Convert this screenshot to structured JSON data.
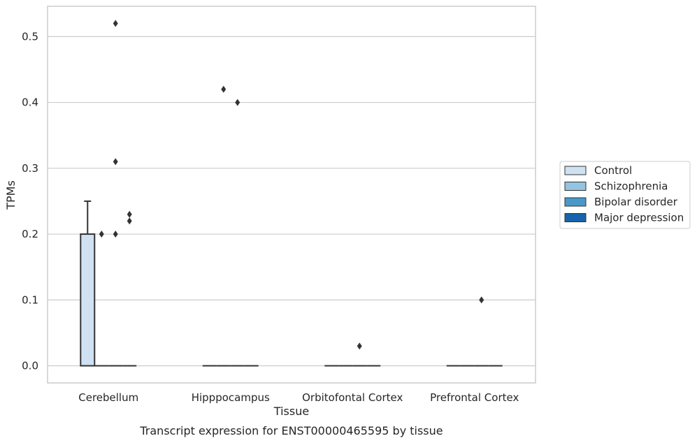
{
  "chart_data": {
    "type": "box",
    "xlabel": "Tissue",
    "ylabel": "TPMs",
    "caption": "Transcript expression for ENST00000465595 by tissue",
    "categories": [
      "Cerebellum",
      "Hipppocampus",
      "Orbitofontal Cortex",
      "Prefrontal Cortex"
    ],
    "ylim": [
      -0.026,
      0.546
    ],
    "yticks": [
      "0.0",
      "0.1",
      "0.2",
      "0.3",
      "0.4",
      "0.5"
    ],
    "grid": "horizontal",
    "legend_position": "right",
    "series": [
      {
        "name": "Control",
        "color": "#d0e1f2"
      },
      {
        "name": "Schizophrenia",
        "color": "#94c4df"
      },
      {
        "name": "Bipolar disorder",
        "color": "#4a98c9"
      },
      {
        "name": "Major depression",
        "color": "#1764ab"
      }
    ],
    "boxes": [
      {
        "category": 0,
        "series": 0,
        "q1": 0.0,
        "median": 0.0,
        "q3": 0.2,
        "whisker_low": 0.0,
        "whisker_high": 0.25,
        "outliers": []
      },
      {
        "category": 0,
        "series": 1,
        "q1": 0.0,
        "median": 0.0,
        "q3": 0.0,
        "whisker_low": 0.0,
        "whisker_high": 0.0,
        "outliers": [
          0.2
        ]
      },
      {
        "category": 0,
        "series": 2,
        "q1": 0.0,
        "median": 0.0,
        "q3": 0.0,
        "whisker_low": 0.0,
        "whisker_high": 0.0,
        "outliers": [
          0.52,
          0.31,
          0.2
        ]
      },
      {
        "category": 0,
        "series": 3,
        "q1": 0.0,
        "median": 0.0,
        "q3": 0.0,
        "whisker_low": 0.0,
        "whisker_high": 0.0,
        "outliers": [
          0.23,
          0.22
        ]
      },
      {
        "category": 1,
        "series": 0,
        "q1": 0.0,
        "median": 0.0,
        "q3": 0.0,
        "whisker_low": 0.0,
        "whisker_high": 0.0,
        "outliers": []
      },
      {
        "category": 1,
        "series": 1,
        "q1": 0.0,
        "median": 0.0,
        "q3": 0.0,
        "whisker_low": 0.0,
        "whisker_high": 0.0,
        "outliers": [
          0.42
        ]
      },
      {
        "category": 1,
        "series": 2,
        "q1": 0.0,
        "median": 0.0,
        "q3": 0.0,
        "whisker_low": 0.0,
        "whisker_high": 0.0,
        "outliers": [
          0.4
        ]
      },
      {
        "category": 1,
        "series": 3,
        "q1": 0.0,
        "median": 0.0,
        "q3": 0.0,
        "whisker_low": 0.0,
        "whisker_high": 0.0,
        "outliers": []
      },
      {
        "category": 2,
        "series": 0,
        "q1": 0.0,
        "median": 0.0,
        "q3": 0.0,
        "whisker_low": 0.0,
        "whisker_high": 0.0,
        "outliers": []
      },
      {
        "category": 2,
        "series": 1,
        "q1": 0.0,
        "median": 0.0,
        "q3": 0.0,
        "whisker_low": 0.0,
        "whisker_high": 0.0,
        "outliers": []
      },
      {
        "category": 2,
        "series": 2,
        "q1": 0.0,
        "median": 0.0,
        "q3": 0.0,
        "whisker_low": 0.0,
        "whisker_high": 0.0,
        "outliers": [
          0.03
        ]
      },
      {
        "category": 2,
        "series": 3,
        "q1": 0.0,
        "median": 0.0,
        "q3": 0.0,
        "whisker_low": 0.0,
        "whisker_high": 0.0,
        "outliers": []
      },
      {
        "category": 3,
        "series": 0,
        "q1": 0.0,
        "median": 0.0,
        "q3": 0.0,
        "whisker_low": 0.0,
        "whisker_high": 0.0,
        "outliers": []
      },
      {
        "category": 3,
        "series": 1,
        "q1": 0.0,
        "median": 0.0,
        "q3": 0.0,
        "whisker_low": 0.0,
        "whisker_high": 0.0,
        "outliers": []
      },
      {
        "category": 3,
        "series": 2,
        "q1": 0.0,
        "median": 0.0,
        "q3": 0.0,
        "whisker_low": 0.0,
        "whisker_high": 0.0,
        "outliers": [
          0.1
        ]
      },
      {
        "category": 3,
        "series": 3,
        "q1": 0.0,
        "median": 0.0,
        "q3": 0.0,
        "whisker_low": 0.0,
        "whisker_high": 0.0,
        "outliers": []
      }
    ]
  }
}
